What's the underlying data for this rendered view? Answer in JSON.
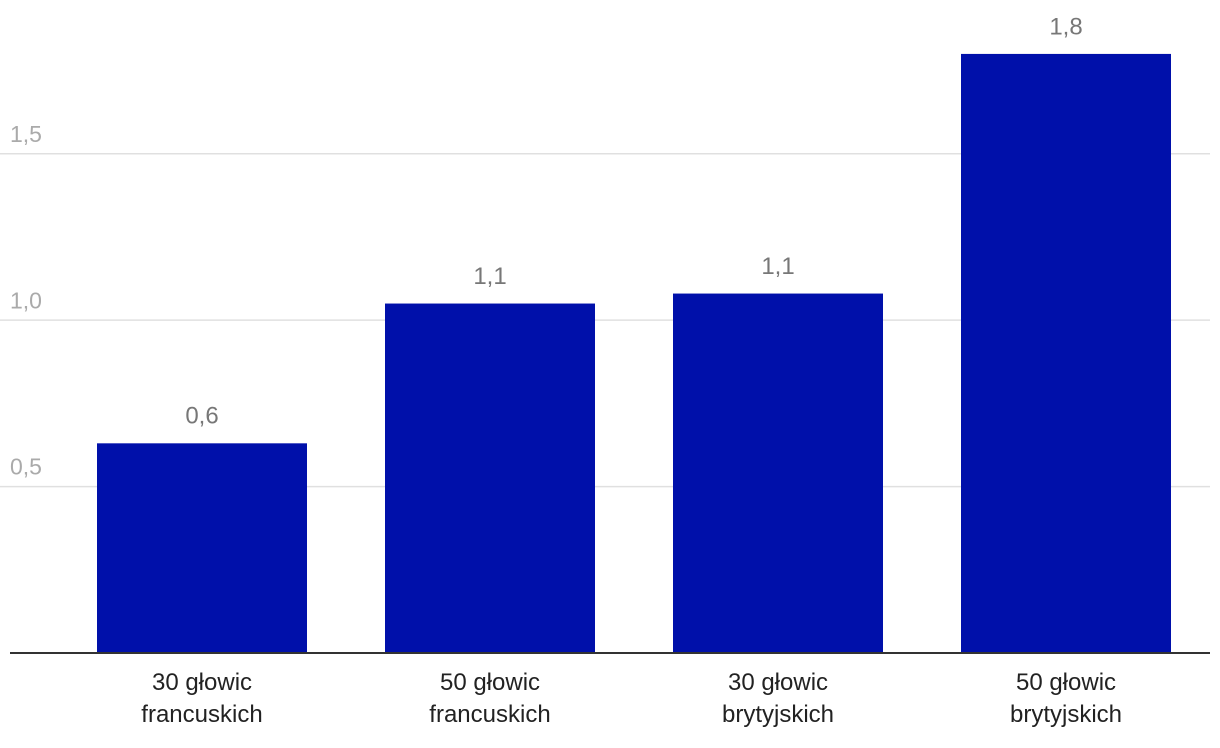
{
  "chart_data": {
    "type": "bar",
    "categories": [
      "30 głowic francuskich",
      "50 głowic francuskich",
      "30 głowic brytyjskich",
      "50 głowic brytyjskich"
    ],
    "values": [
      0.63,
      1.05,
      1.08,
      1.8
    ],
    "value_labels": [
      "0,6",
      "1,1",
      "1,1",
      "1,8"
    ],
    "color": "#0010aa",
    "ylim": [
      0,
      1.95
    ],
    "yticks": [
      {
        "value": 0.5,
        "label": "0,5"
      },
      {
        "value": 1.0,
        "label": "1,0"
      },
      {
        "value": 1.5,
        "label": "1,5"
      }
    ],
    "grid": true
  }
}
